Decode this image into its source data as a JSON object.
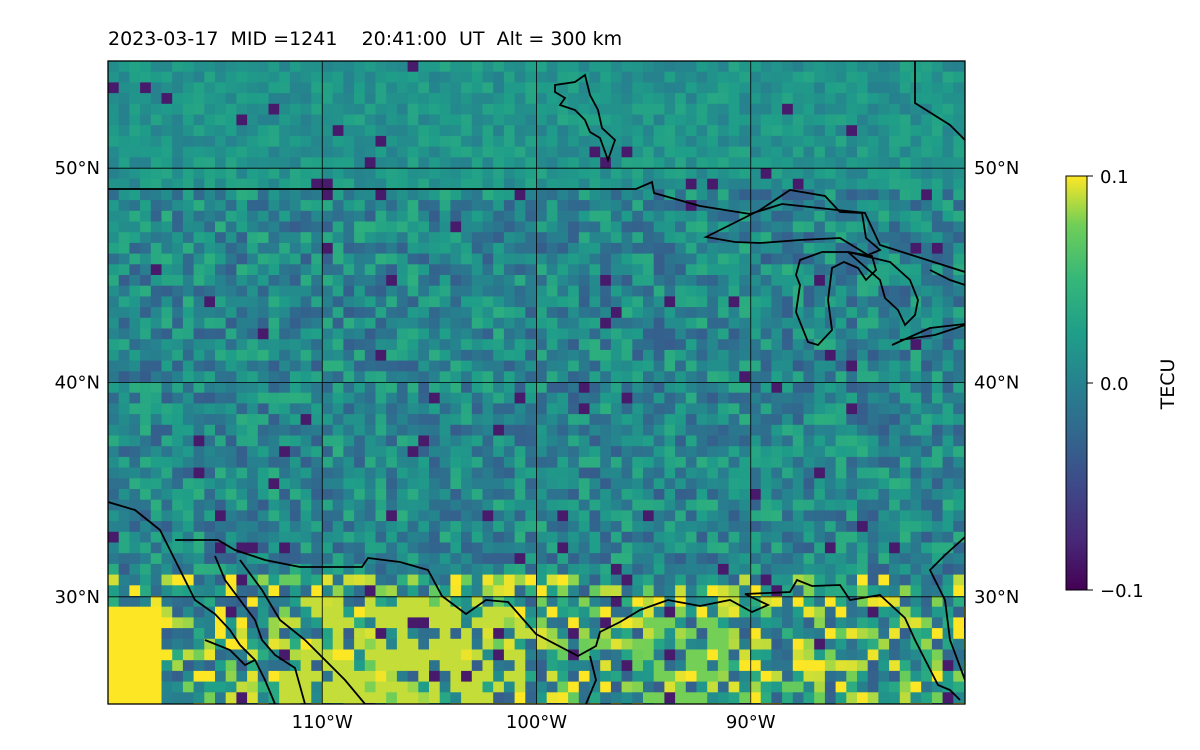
{
  "title": "2023-03-17  MID =1241    20:41:00  UT  Alt = 300 km",
  "map": {
    "x_ticks": [
      {
        "lon": -110,
        "label": "110°W"
      },
      {
        "lon": -100,
        "label": "100°W"
      },
      {
        "lon": -90,
        "label": "90°W"
      }
    ],
    "y_ticks": [
      {
        "lat": 50,
        "label": "50°N"
      },
      {
        "lat": 40,
        "label": "40°N"
      },
      {
        "lat": 30,
        "label": "30°N"
      }
    ],
    "lon_range": [
      -120,
      -80
    ],
    "lat_range": [
      25,
      55
    ],
    "grid": true
  },
  "colorbar": {
    "label": "TECU",
    "ticks": [
      {
        "value": 0.1,
        "label": "0.1"
      },
      {
        "value": 0.0,
        "label": "0.0"
      },
      {
        "value": -0.1,
        "label": "−0.1"
      }
    ],
    "range": [
      -0.1,
      0.1
    ],
    "colormap": "viridis"
  },
  "colors": {
    "coast": "#000000",
    "grid": "#000000",
    "background_field": "#2a8f8c"
  }
}
